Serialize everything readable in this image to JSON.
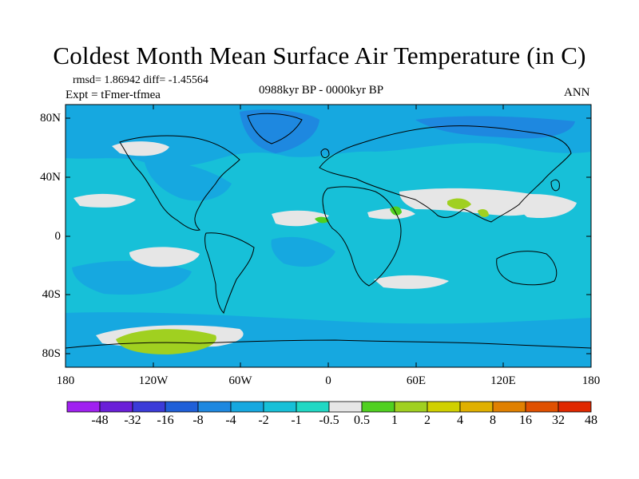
{
  "title": "Coldest Month Mean Surface Air Temperature (in C)",
  "stats": "rmsd= 1.86942 diff= -1.45564",
  "expt": "Expt = tFmer-tfmea",
  "period": "0988kyr BP - 0000kyr BP",
  "season": "ANN",
  "lat_labels": [
    "80N",
    "40N",
    "0",
    "40S",
    "80S"
  ],
  "lon_labels": [
    "180",
    "120W",
    "60W",
    "0",
    "60E",
    "120E",
    "180"
  ],
  "colorbar": {
    "colors": [
      "#a020f0",
      "#6a1fd8",
      "#3b3bd8",
      "#1f5fd8",
      "#1e88e0",
      "#16a8e0",
      "#17c0d8",
      "#20d8c4",
      "#e6e6e6",
      "#50d020",
      "#a0d020",
      "#d0d000",
      "#e0b000",
      "#e08000",
      "#e05000",
      "#e02800"
    ],
    "labels": [
      "-48",
      "-32",
      "-16",
      "-8",
      "-4",
      "-2",
      "-1",
      "-0.5",
      "0.5",
      "1",
      "2",
      "4",
      "8",
      "16",
      "32",
      "48"
    ]
  },
  "field_colors": {
    "ocean": "#17c0d8",
    "cool": "#16a8e0",
    "cold": "#1e88e0",
    "neutral": "#e6e6e6",
    "warm": "#a0d020",
    "warmer": "#50d020"
  }
}
